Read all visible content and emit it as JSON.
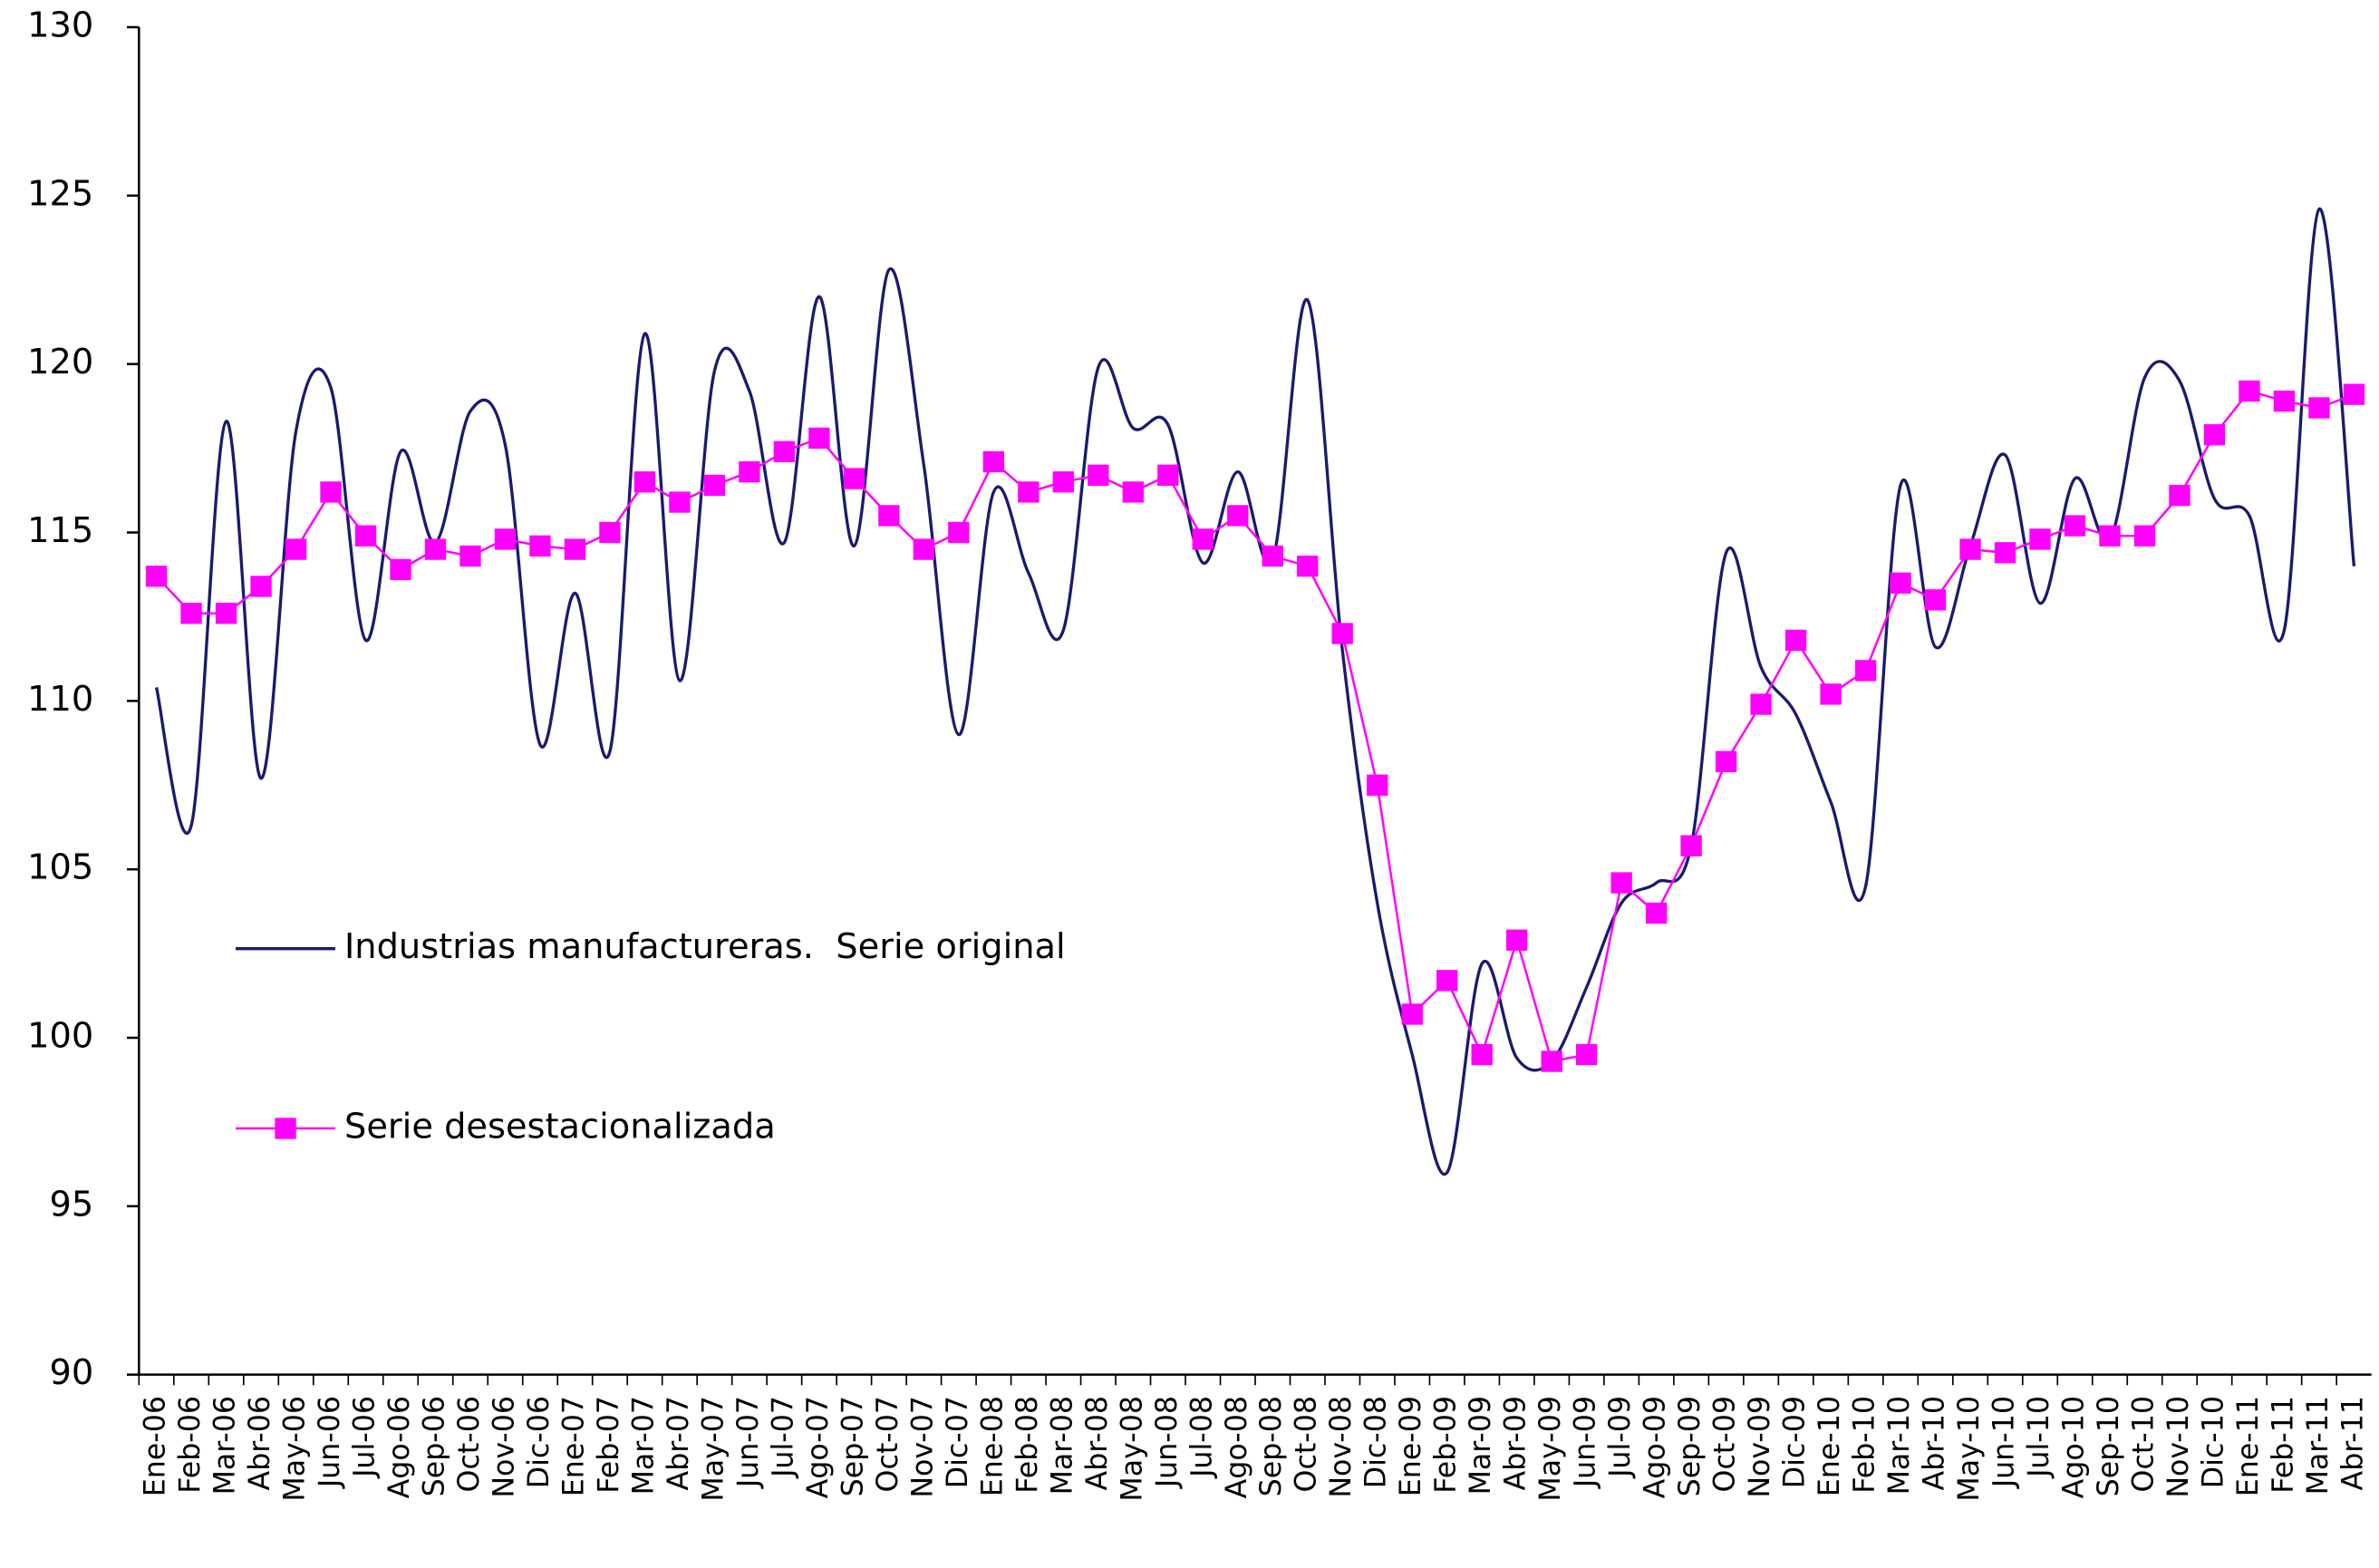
{
  "chart_data": {
    "type": "line",
    "categories": [
      "Ene-06",
      "Feb-06",
      "Mar-06",
      "Abr-06",
      "May-06",
      "Jun-06",
      "Jul-06",
      "Ago-06",
      "Sep-06",
      "Oct-06",
      "Nov-06",
      "Dic-06",
      "Ene-07",
      "Feb-07",
      "Mar-07",
      "Abr-07",
      "May-07",
      "Jun-07",
      "Jul-07",
      "Ago-07",
      "Sep-07",
      "Oct-07",
      "Nov-07",
      "Dic-07",
      "Ene-08",
      "Feb-08",
      "Mar-08",
      "Abr-08",
      "May-08",
      "Jun-08",
      "Jul-08",
      "Ago-08",
      "Sep-08",
      "Oct-08",
      "Nov-08",
      "Dic-08",
      "Ene-09",
      "Feb-09",
      "Mar-09",
      "Abr-09",
      "May-09",
      "Jun-09",
      "Jul-09",
      "Ago-09",
      "Sep-09",
      "Oct-09",
      "Nov-09",
      "Dic-09",
      "Ene-10",
      "Feb-10",
      "Mar-10",
      "Abr-10",
      "May-10",
      "Jun-10",
      "Jul-10",
      "Ago-10",
      "Sep-10",
      "Oct-10",
      "Nov-10",
      "Dic-10",
      "Ene-11",
      "Feb-11",
      "Mar-11",
      "Abr-11"
    ],
    "series": [
      {
        "name": "Industrias manufactureras.  Serie original",
        "color": "#1a1a6e",
        "smooth": true,
        "marker": false,
        "values": [
          110.4,
          106.3,
          118.3,
          107.7,
          118.0,
          119.3,
          111.8,
          117.4,
          114.7,
          118.6,
          117.6,
          108.7,
          113.2,
          108.5,
          120.9,
          110.6,
          119.8,
          119.2,
          114.7,
          122.0,
          114.6,
          122.8,
          117.0,
          109.0,
          116.2,
          113.8,
          112.1,
          119.9,
          118.1,
          118.2,
          114.1,
          116.8,
          114.2,
          121.9,
          111.5,
          104.0,
          99.5,
          96.0,
          102.2,
          99.4,
          99.3,
          101.5,
          104.0,
          104.6,
          105.7,
          114.4,
          111.0,
          109.6,
          107.0,
          104.5,
          116.4,
          111.6,
          114.6,
          117.3,
          112.9,
          116.6,
          114.8,
          119.6,
          119.5,
          116.0,
          115.5,
          112.1,
          124.6,
          114.0
        ]
      },
      {
        "name": "Serie desestacionalizada",
        "color": "#ff00ff",
        "smooth": false,
        "marker": true,
        "values": [
          113.7,
          112.6,
          112.6,
          113.4,
          114.5,
          116.2,
          114.9,
          113.9,
          114.5,
          114.3,
          114.8,
          114.6,
          114.5,
          115.0,
          116.5,
          115.9,
          116.4,
          116.8,
          117.4,
          117.8,
          116.6,
          115.5,
          114.5,
          115.0,
          117.1,
          116.2,
          116.5,
          116.7,
          116.2,
          116.7,
          114.8,
          115.5,
          114.3,
          114.0,
          112.0,
          107.5,
          100.7,
          101.7,
          99.5,
          102.9,
          99.3,
          99.5,
          104.6,
          103.7,
          105.7,
          108.2,
          109.9,
          111.8,
          110.2,
          110.9,
          113.5,
          113.0,
          114.5,
          114.4,
          114.8,
          115.2,
          114.9,
          114.9,
          116.1,
          117.9,
          119.2,
          118.9,
          118.7,
          119.1
        ]
      }
    ],
    "ylim": [
      90,
      130
    ],
    "yticks": [
      90,
      95,
      100,
      105,
      110,
      115,
      120,
      125,
      130
    ],
    "grid": false
  }
}
